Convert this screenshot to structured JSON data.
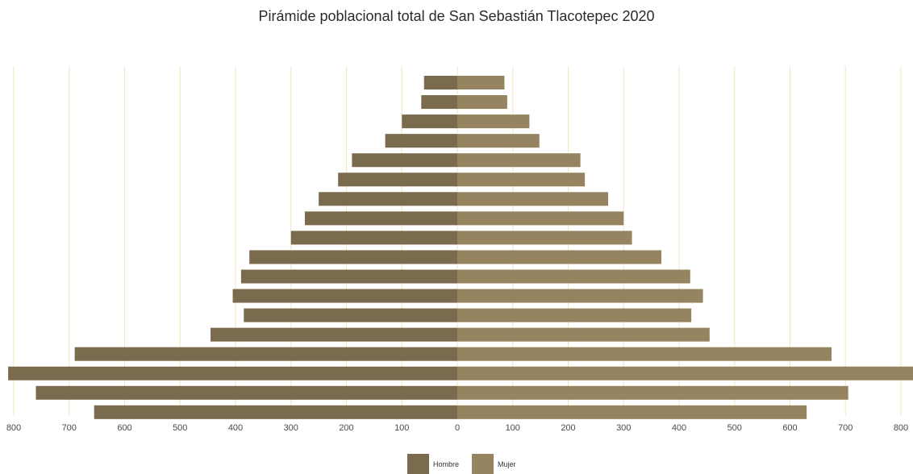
{
  "chart_data": {
    "type": "bar",
    "orientation": "horizontal",
    "title": "Pirámide poblacional total de San Sebastián Tlacotepec 2020",
    "xlabel": "",
    "ylabel": "",
    "xlim": [
      -800,
      800
    ],
    "x_ticks": [
      800,
      700,
      600,
      500,
      400,
      300,
      200,
      100,
      0,
      100,
      200,
      300,
      400,
      500,
      600,
      700,
      800
    ],
    "grid": true,
    "legend_position": "bottom",
    "series": [
      {
        "name": "Hombre",
        "color": "#7a6a4e",
        "values": [
          60,
          65,
          100,
          130,
          190,
          215,
          250,
          275,
          300,
          375,
          390,
          405,
          385,
          445,
          690,
          810,
          760,
          655
        ]
      },
      {
        "name": "Mujer",
        "color": "#95845f",
        "values": [
          85,
          90,
          130,
          148,
          222,
          230,
          272,
          300,
          315,
          368,
          420,
          443,
          422,
          455,
          675,
          835,
          705,
          630
        ]
      }
    ]
  }
}
